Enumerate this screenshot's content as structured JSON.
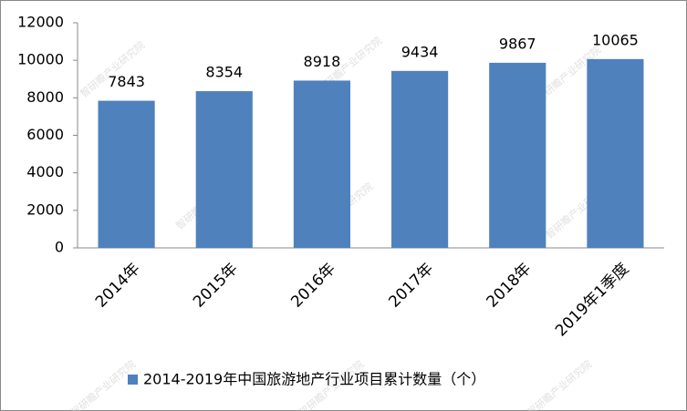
{
  "chart_data": {
    "type": "bar",
    "categories": [
      "2014年",
      "2015年",
      "2016年",
      "2017年",
      "2018年",
      "2019年1季度"
    ],
    "series": [
      {
        "name": "2014-2019年中国旅游地产行业项目累计数量（个）",
        "color": "#4f81bd",
        "values": [
          7843,
          8354,
          8918,
          9434,
          9867,
          10065
        ]
      }
    ],
    "ylim": [
      0,
      12000
    ],
    "yticks": [
      0,
      2000,
      4000,
      6000,
      8000,
      10000,
      12000
    ],
    "grid": false,
    "legend": "bottom",
    "watermark": "智研瞻产业研究院"
  }
}
